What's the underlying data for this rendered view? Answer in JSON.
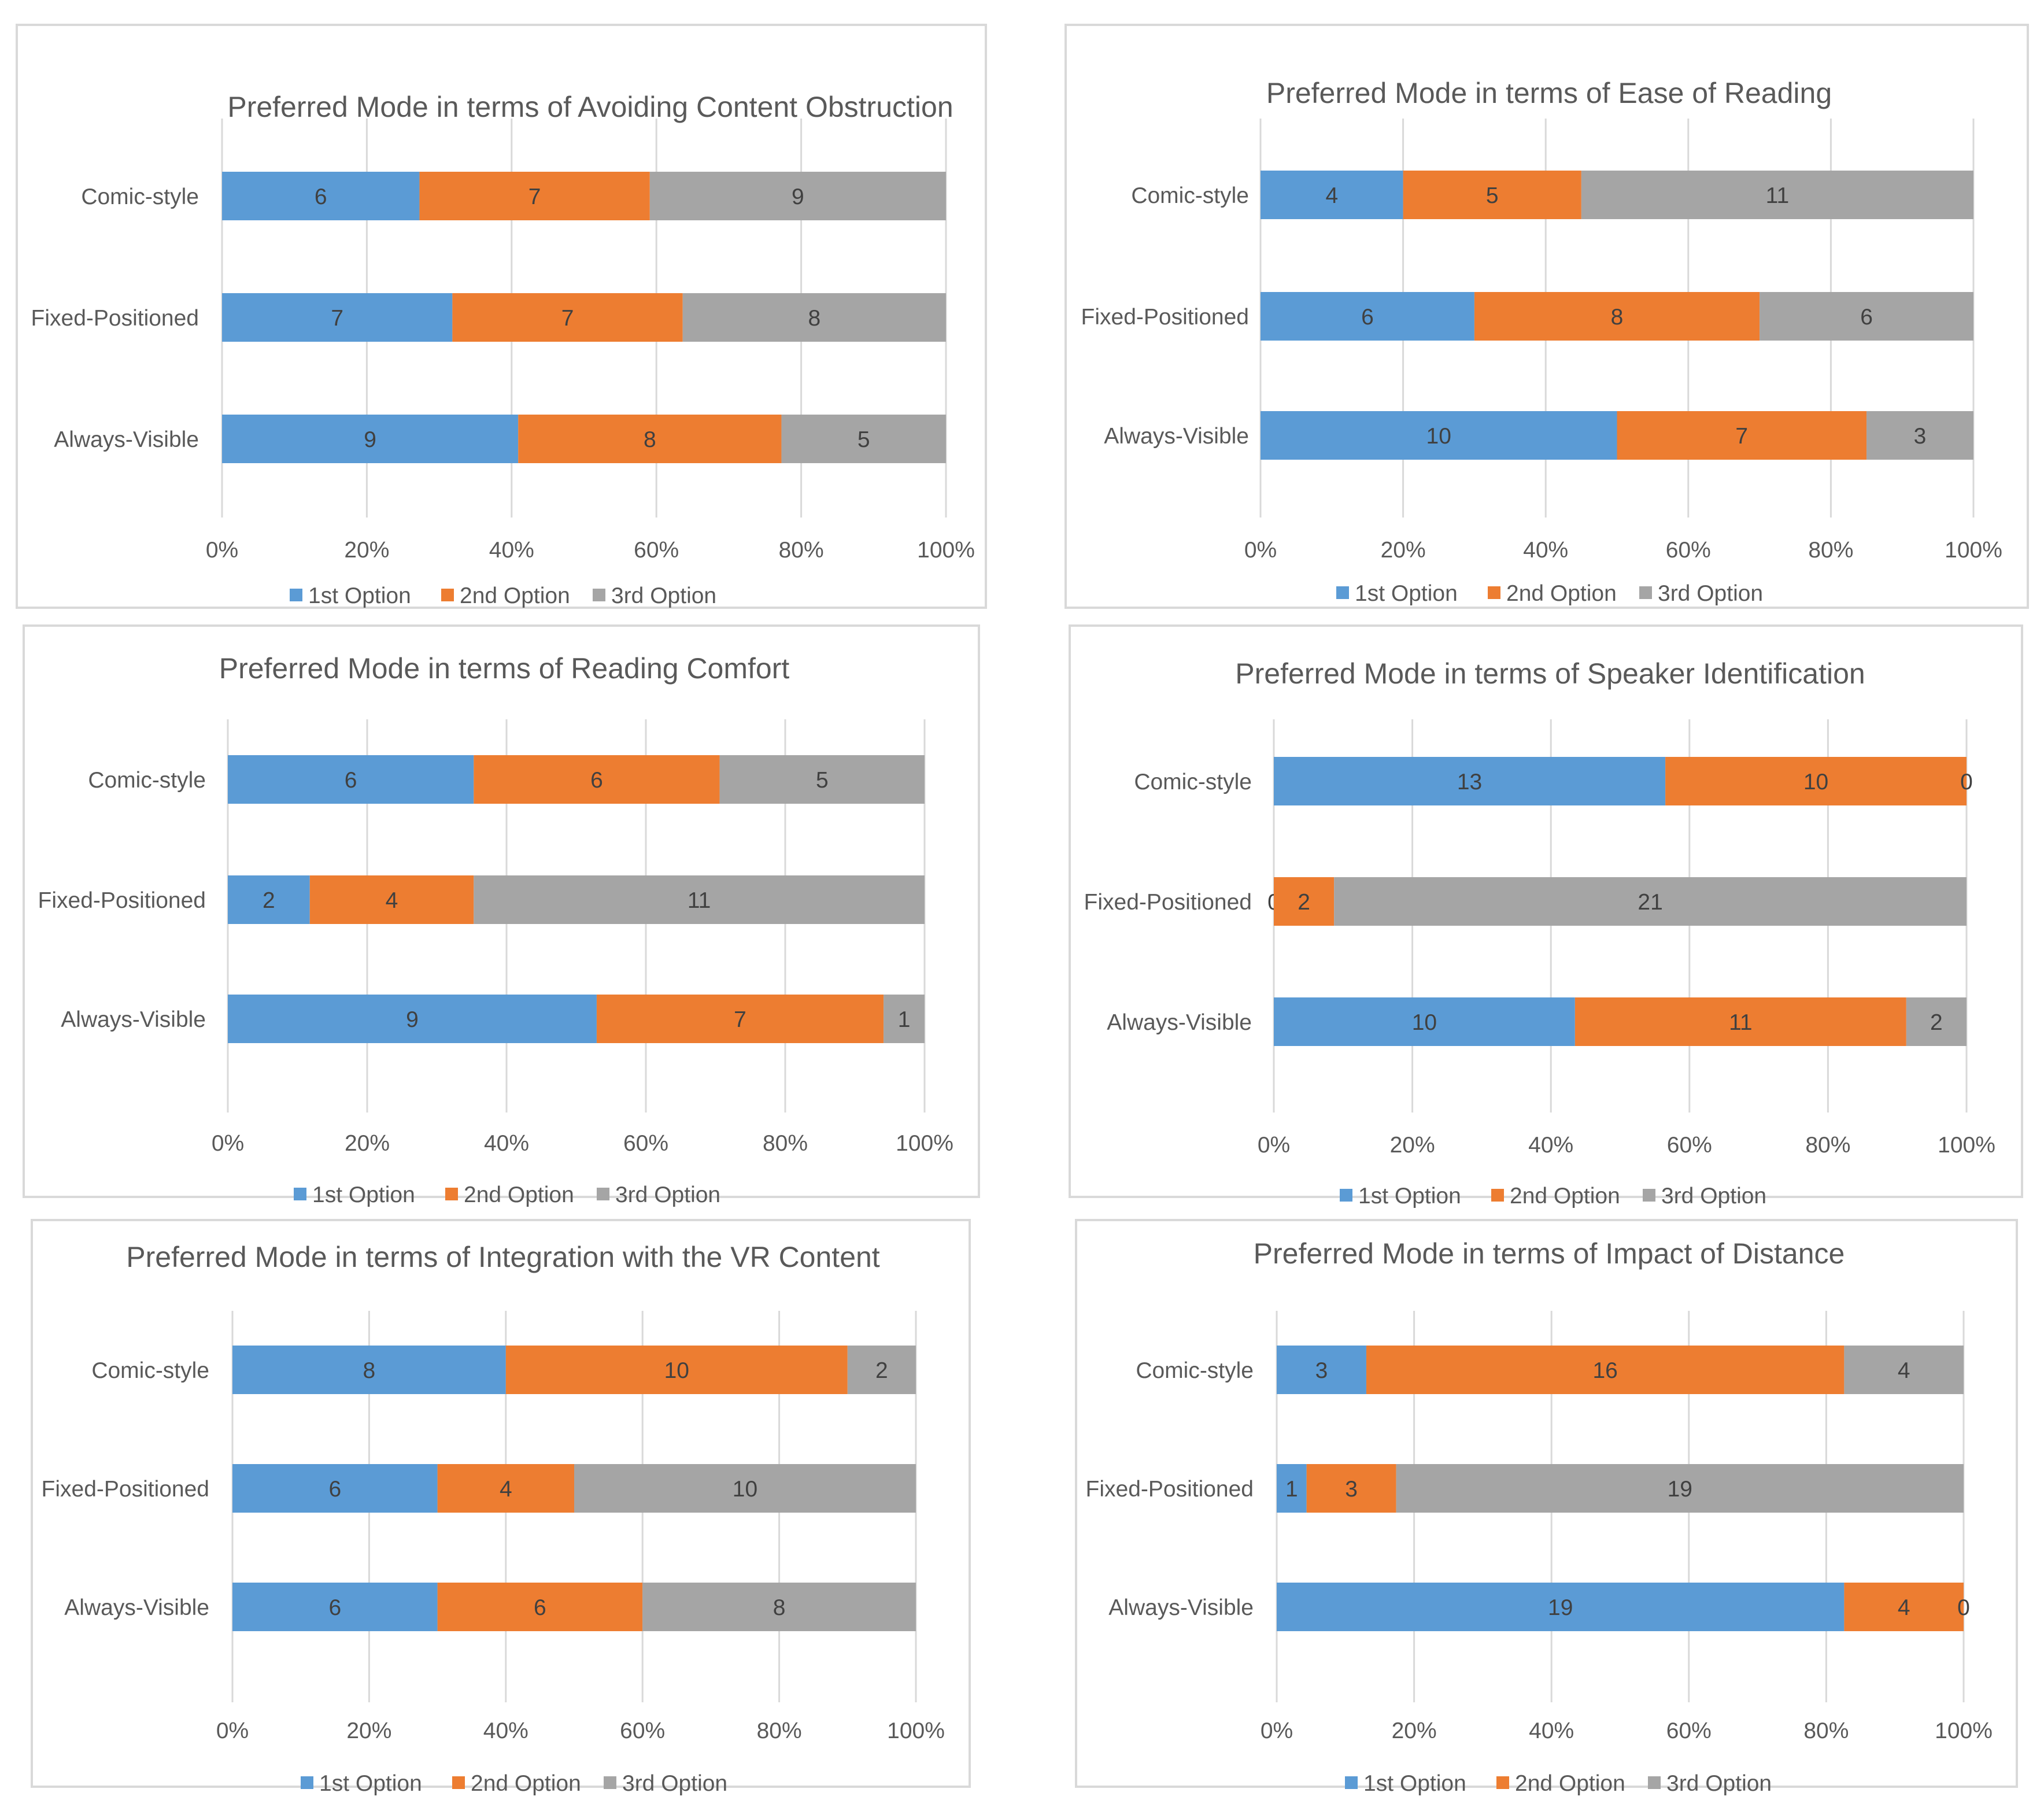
{
  "legend": [
    "1st Option",
    "2nd Option",
    "3rd Option"
  ],
  "colors": [
    "#5b9bd5",
    "#ed7d31",
    "#a5a5a5"
  ],
  "chart_data": [
    {
      "type": "bar",
      "title": "Preferred Mode in terms of Avoiding Content Obstruction",
      "categories": [
        "Comic-style",
        "Fixed-Positioned",
        "Always-Visible"
      ],
      "series": [
        {
          "name": "1st Option",
          "values": [
            6,
            7,
            9
          ]
        },
        {
          "name": "2nd Option",
          "values": [
            7,
            7,
            8
          ]
        },
        {
          "name": "3rd Option",
          "values": [
            9,
            8,
            5
          ]
        }
      ],
      "xticks": [
        "0%",
        "20%",
        "40%",
        "60%",
        "80%",
        "100%"
      ],
      "stacking": "percent",
      "legend_position": "bottom"
    },
    {
      "type": "bar",
      "title": "Preferred Mode in terms of Ease of Reading",
      "categories": [
        "Comic-style",
        "Fixed-Positioned",
        "Always-Visible"
      ],
      "series": [
        {
          "name": "1st Option",
          "values": [
            4,
            6,
            10
          ]
        },
        {
          "name": "2nd Option",
          "values": [
            5,
            8,
            7
          ]
        },
        {
          "name": "3rd Option",
          "values": [
            11,
            6,
            3
          ]
        }
      ],
      "xticks": [
        "0%",
        "20%",
        "40%",
        "60%",
        "80%",
        "100%"
      ],
      "stacking": "percent",
      "legend_position": "bottom"
    },
    {
      "type": "bar",
      "title": "Preferred Mode in terms of Reading Comfort",
      "categories": [
        "Comic-style",
        "Fixed-Positioned",
        "Always-Visible"
      ],
      "series": [
        {
          "name": "1st Option",
          "values": [
            6,
            2,
            9
          ]
        },
        {
          "name": "2nd Option",
          "values": [
            6,
            4,
            7
          ]
        },
        {
          "name": "3rd Option",
          "values": [
            5,
            11,
            1
          ]
        }
      ],
      "xticks": [
        "0%",
        "20%",
        "40%",
        "60%",
        "80%",
        "100%"
      ],
      "stacking": "percent",
      "legend_position": "bottom"
    },
    {
      "type": "bar",
      "title": "Preferred Mode in terms of Speaker Identification",
      "categories": [
        "Comic-style",
        "Fixed-Positioned",
        "Always-Visible"
      ],
      "series": [
        {
          "name": "1st Option",
          "values": [
            13,
            0,
            10
          ]
        },
        {
          "name": "2nd Option",
          "values": [
            10,
            2,
            11
          ]
        },
        {
          "name": "3rd Option",
          "values": [
            0,
            21,
            2
          ]
        }
      ],
      "xticks": [
        "0%",
        "20%",
        "40%",
        "60%",
        "80%",
        "100%"
      ],
      "stacking": "percent",
      "legend_position": "bottom"
    },
    {
      "type": "bar",
      "title": "Preferred Mode in terms of Integration with the VR Content",
      "categories": [
        "Comic-style",
        "Fixed-Positioned",
        "Always-Visible"
      ],
      "series": [
        {
          "name": "1st Option",
          "values": [
            8,
            6,
            6
          ]
        },
        {
          "name": "2nd Option",
          "values": [
            10,
            4,
            6
          ]
        },
        {
          "name": "3rd Option",
          "values": [
            2,
            10,
            8
          ]
        }
      ],
      "xticks": [
        "0%",
        "20%",
        "40%",
        "60%",
        "80%",
        "100%"
      ],
      "stacking": "percent",
      "legend_position": "bottom"
    },
    {
      "type": "bar",
      "title": "Preferred Mode in terms of Impact of Distance",
      "categories": [
        "Comic-style",
        "Fixed-Positioned",
        "Always-Visible"
      ],
      "series": [
        {
          "name": "1st Option",
          "values": [
            3,
            1,
            19
          ]
        },
        {
          "name": "2nd Option",
          "values": [
            16,
            3,
            4
          ]
        },
        {
          "name": "3rd Option",
          "values": [
            4,
            19,
            0
          ]
        }
      ],
      "xticks": [
        "0%",
        "20%",
        "40%",
        "60%",
        "80%",
        "100%"
      ],
      "stacking": "percent",
      "legend_position": "bottom"
    }
  ]
}
